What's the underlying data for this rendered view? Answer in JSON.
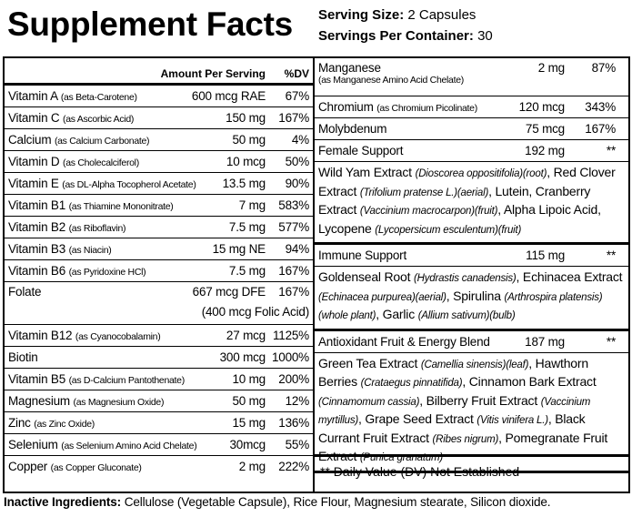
{
  "header": {
    "title": "Supplement Facts",
    "serving_size_label": "Serving Size:",
    "serving_size": "2 Capsules",
    "servings_label": "Servings Per Container:",
    "servings": "30"
  },
  "left": {
    "col_headers": [
      "Amount Per Serving",
      "%DV"
    ],
    "rows": [
      {
        "name": "Vitamin A",
        "source": "(as Beta-Carotene)",
        "amount": "600 mcg RAE",
        "dv": "67%"
      },
      {
        "name": "Vitamin C",
        "source": "(as Ascorbic Acid)",
        "amount": "150 mg",
        "dv": "167%"
      },
      {
        "name": "Calcium",
        "source": "(as Calcium Carbonate)",
        "amount": "50 mg",
        "dv": "4%"
      },
      {
        "name": "Vitamin D",
        "source": "(as Cholecalciferol)",
        "amount": "10 mcg",
        "dv": "50%"
      },
      {
        "name": "Vitamin E",
        "source": "(as DL-Alpha Tocopherol Acetate)",
        "amount": "13.5 mg",
        "dv": "90%"
      },
      {
        "name": "Vitamin B1",
        "source": "(as Thiamine Mononitrate)",
        "amount": "7 mg",
        "dv": "583%"
      },
      {
        "name": "Vitamin B2",
        "source": "(as Riboflavin)",
        "amount": "7.5 mg",
        "dv": "577%"
      },
      {
        "name": "Vitamin B3",
        "source": "(as Niacin)",
        "amount": "15 mg NE",
        "dv": "94%"
      },
      {
        "name": "Vitamin B6",
        "source": "(as Pyridoxine HCl)",
        "amount": "7.5 mg",
        "dv": "167%"
      },
      {
        "name": "Folate",
        "amount": "667 mcg DFE",
        "dv": "167%",
        "note": "(400 mcg Folic Acid)"
      },
      {
        "name": "Vitamin B12",
        "source": "(as Cyanocobalamin)",
        "amount": "27 mcg",
        "dv": "1125%"
      },
      {
        "name": "Biotin",
        "amount": "300 mcg",
        "dv": "1000%"
      },
      {
        "name": "Vitamin B5",
        "source": "(as D-Calcium Pantothenate)",
        "amount": "10 mg",
        "dv": "200%"
      },
      {
        "name": "Magnesium",
        "source": "(as Magnesium Oxide)",
        "amount": "50 mg",
        "dv": "12%"
      },
      {
        "name": "Zinc",
        "source": "(as Zinc Oxide)",
        "amount": "15 mg",
        "dv": "136%"
      },
      {
        "name": "Selenium",
        "source": "(as Selenium Amino Acid Chelate)",
        "amount": "30mcg",
        "dv": "55%"
      },
      {
        "name": "Copper",
        "source": "(as Copper Gluconate)",
        "amount": "2 mg",
        "dv": "222%"
      }
    ]
  },
  "right": {
    "rows": [
      {
        "name": "Manganese",
        "source": "(as Manganese Amino Acid Chelate)",
        "source_below": true,
        "amount": "2 mg",
        "dv": "87%"
      },
      {
        "name": "Chromium",
        "source": "(as Chromium Picolinate)",
        "amount": "120 mcg",
        "dv": "343%"
      },
      {
        "name": "Molybdenum",
        "amount": "75 mcg",
        "dv": "167%"
      },
      {
        "name": "Female Support",
        "amount": "192 mg",
        "dv": "**",
        "parts": [
          {
            "text": "Wild Yam Extract "
          },
          {
            "text": "(Dioscorea oppositifolia)(root)",
            "italic": true
          },
          {
            "text": ", Red Clover Extract "
          },
          {
            "text": "(Trifolium pratense L.)(aerial)",
            "italic": true
          },
          {
            "text": ", Lutein, Cranberry Extract "
          },
          {
            "text": "(Vaccinium macrocarpon)(fruit)",
            "italic": true
          },
          {
            "text": ", Alpha Lipoic Acid, Lycopene "
          },
          {
            "text": "(Lycopersicum esculentum)(fruit)",
            "italic": true
          }
        ]
      },
      {
        "name": "Immune Support",
        "amount": "115 mg",
        "dv": "**",
        "parts": [
          {
            "text": "Goldenseal Root "
          },
          {
            "text": "(Hydrastis canadensis)",
            "italic": true
          },
          {
            "text": ", Echinacea Extract "
          },
          {
            "text": "(Echinacea purpurea)(aerial)",
            "italic": true
          },
          {
            "text": ", Spirulina "
          },
          {
            "text": "(Arthrospira platensis)(whole plant)",
            "italic": true
          },
          {
            "text": ", Garlic "
          },
          {
            "text": "(Allium sativum)(bulb)",
            "italic": true
          }
        ]
      },
      {
        "name": "Antioxidant Fruit & Energy Blend",
        "amount": "187 mg",
        "dv": "**",
        "parts": [
          {
            "text": "Green Tea Extract "
          },
          {
            "text": "(Camellia sinensis)(leaf)",
            "italic": true
          },
          {
            "text": ", Hawthorn Berries "
          },
          {
            "text": "(Crataegus pinnatifida)",
            "italic": true
          },
          {
            "text": ", Cinnamon Bark Extract "
          },
          {
            "text": "(Cinnamomum cassia)",
            "italic": true
          },
          {
            "text": ", Bilberry Fruit Extract "
          },
          {
            "text": "(Vaccinium myrtillus)",
            "italic": true
          },
          {
            "text": ", Grape Seed Extract "
          },
          {
            "text": "(Vitis vinifera L.)",
            "italic": true
          },
          {
            "text": ", Black Currant Fruit Extract "
          },
          {
            "text": "(Ribes nigrum)",
            "italic": true
          },
          {
            "text": ", Pomegranate Fruit Extract "
          },
          {
            "text": "(Punica granatum)",
            "italic": true
          }
        ]
      }
    ]
  },
  "footnote": "** Daily Value (DV) Not Established",
  "inactive": {
    "label": "Inactive Ingredients:",
    "text": "Cellulose (Vegetable Capsule), Rice Flour, Magnesium stearate, Silicon dioxide."
  }
}
